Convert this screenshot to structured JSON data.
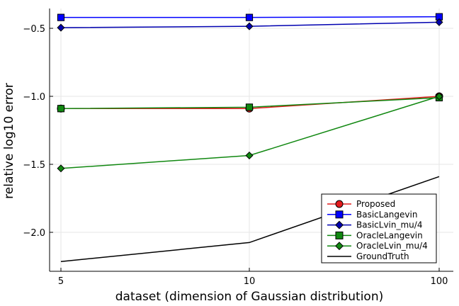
{
  "chart_data": {
    "type": "line",
    "title": "",
    "xlabel": "dataset (dimension of Gaussian distribution)",
    "ylabel": "relative log10 error",
    "x_scale": "log",
    "x": [
      5,
      10,
      100
    ],
    "x_tick_labels": [
      "5",
      "10",
      "100"
    ],
    "y_ticks": [
      -2.0,
      -1.5,
      -1.0,
      -0.5
    ],
    "y_tick_labels": [
      "−2.0",
      "−1.5",
      "−1.0",
      "−0.5"
    ],
    "ylim": [
      -2.25,
      -0.4
    ],
    "grid": true,
    "legend_position": "bottom-right",
    "series": [
      {
        "name": "Proposed",
        "color": "#e31a1c",
        "marker": "circle",
        "values": [
          -1.09,
          -1.09,
          -1.0
        ]
      },
      {
        "name": "BasicLangevin",
        "color": "#0000ff",
        "marker": "square",
        "values": [
          -0.42,
          -0.42,
          -0.415
        ]
      },
      {
        "name": "BasicLvin_mu/4",
        "color": "#0000b0",
        "marker": "diamond",
        "values": [
          -0.495,
          -0.485,
          -0.455
        ]
      },
      {
        "name": "OracleLangevin",
        "color": "#118811",
        "marker": "square",
        "values": [
          -1.09,
          -1.08,
          -1.01
        ]
      },
      {
        "name": "OracleLvin_mu/4",
        "color": "#118811",
        "marker": "diamond",
        "values": [
          -1.53,
          -1.435,
          -1.0
        ]
      },
      {
        "name": "GroundTruth",
        "color": "#000000",
        "marker": "none",
        "values": [
          -2.215,
          -2.075,
          -1.59
        ]
      }
    ]
  }
}
